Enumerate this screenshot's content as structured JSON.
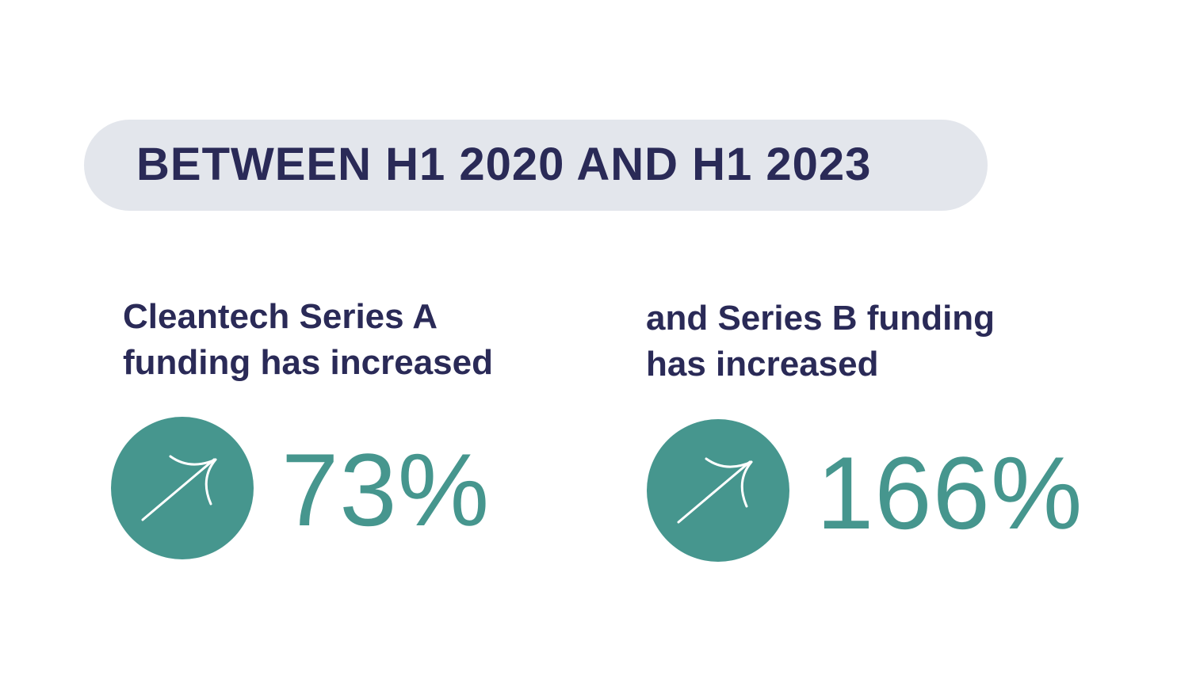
{
  "heading": {
    "text": "BETWEEN H1 2020 AND H1 2023"
  },
  "stats": [
    {
      "label_line1": "Cleantech Series A",
      "label_line2": "funding has increased",
      "value": "73%",
      "icon": "up-right-arrow-icon"
    },
    {
      "label_line1": "and Series B funding",
      "label_line2": "has increased",
      "value": "166%",
      "icon": "up-right-arrow-icon"
    }
  ],
  "colors": {
    "navy": "#2a2a57",
    "teal": "#46968e",
    "pill": "#e3e6ec",
    "background": "#ffffff"
  }
}
